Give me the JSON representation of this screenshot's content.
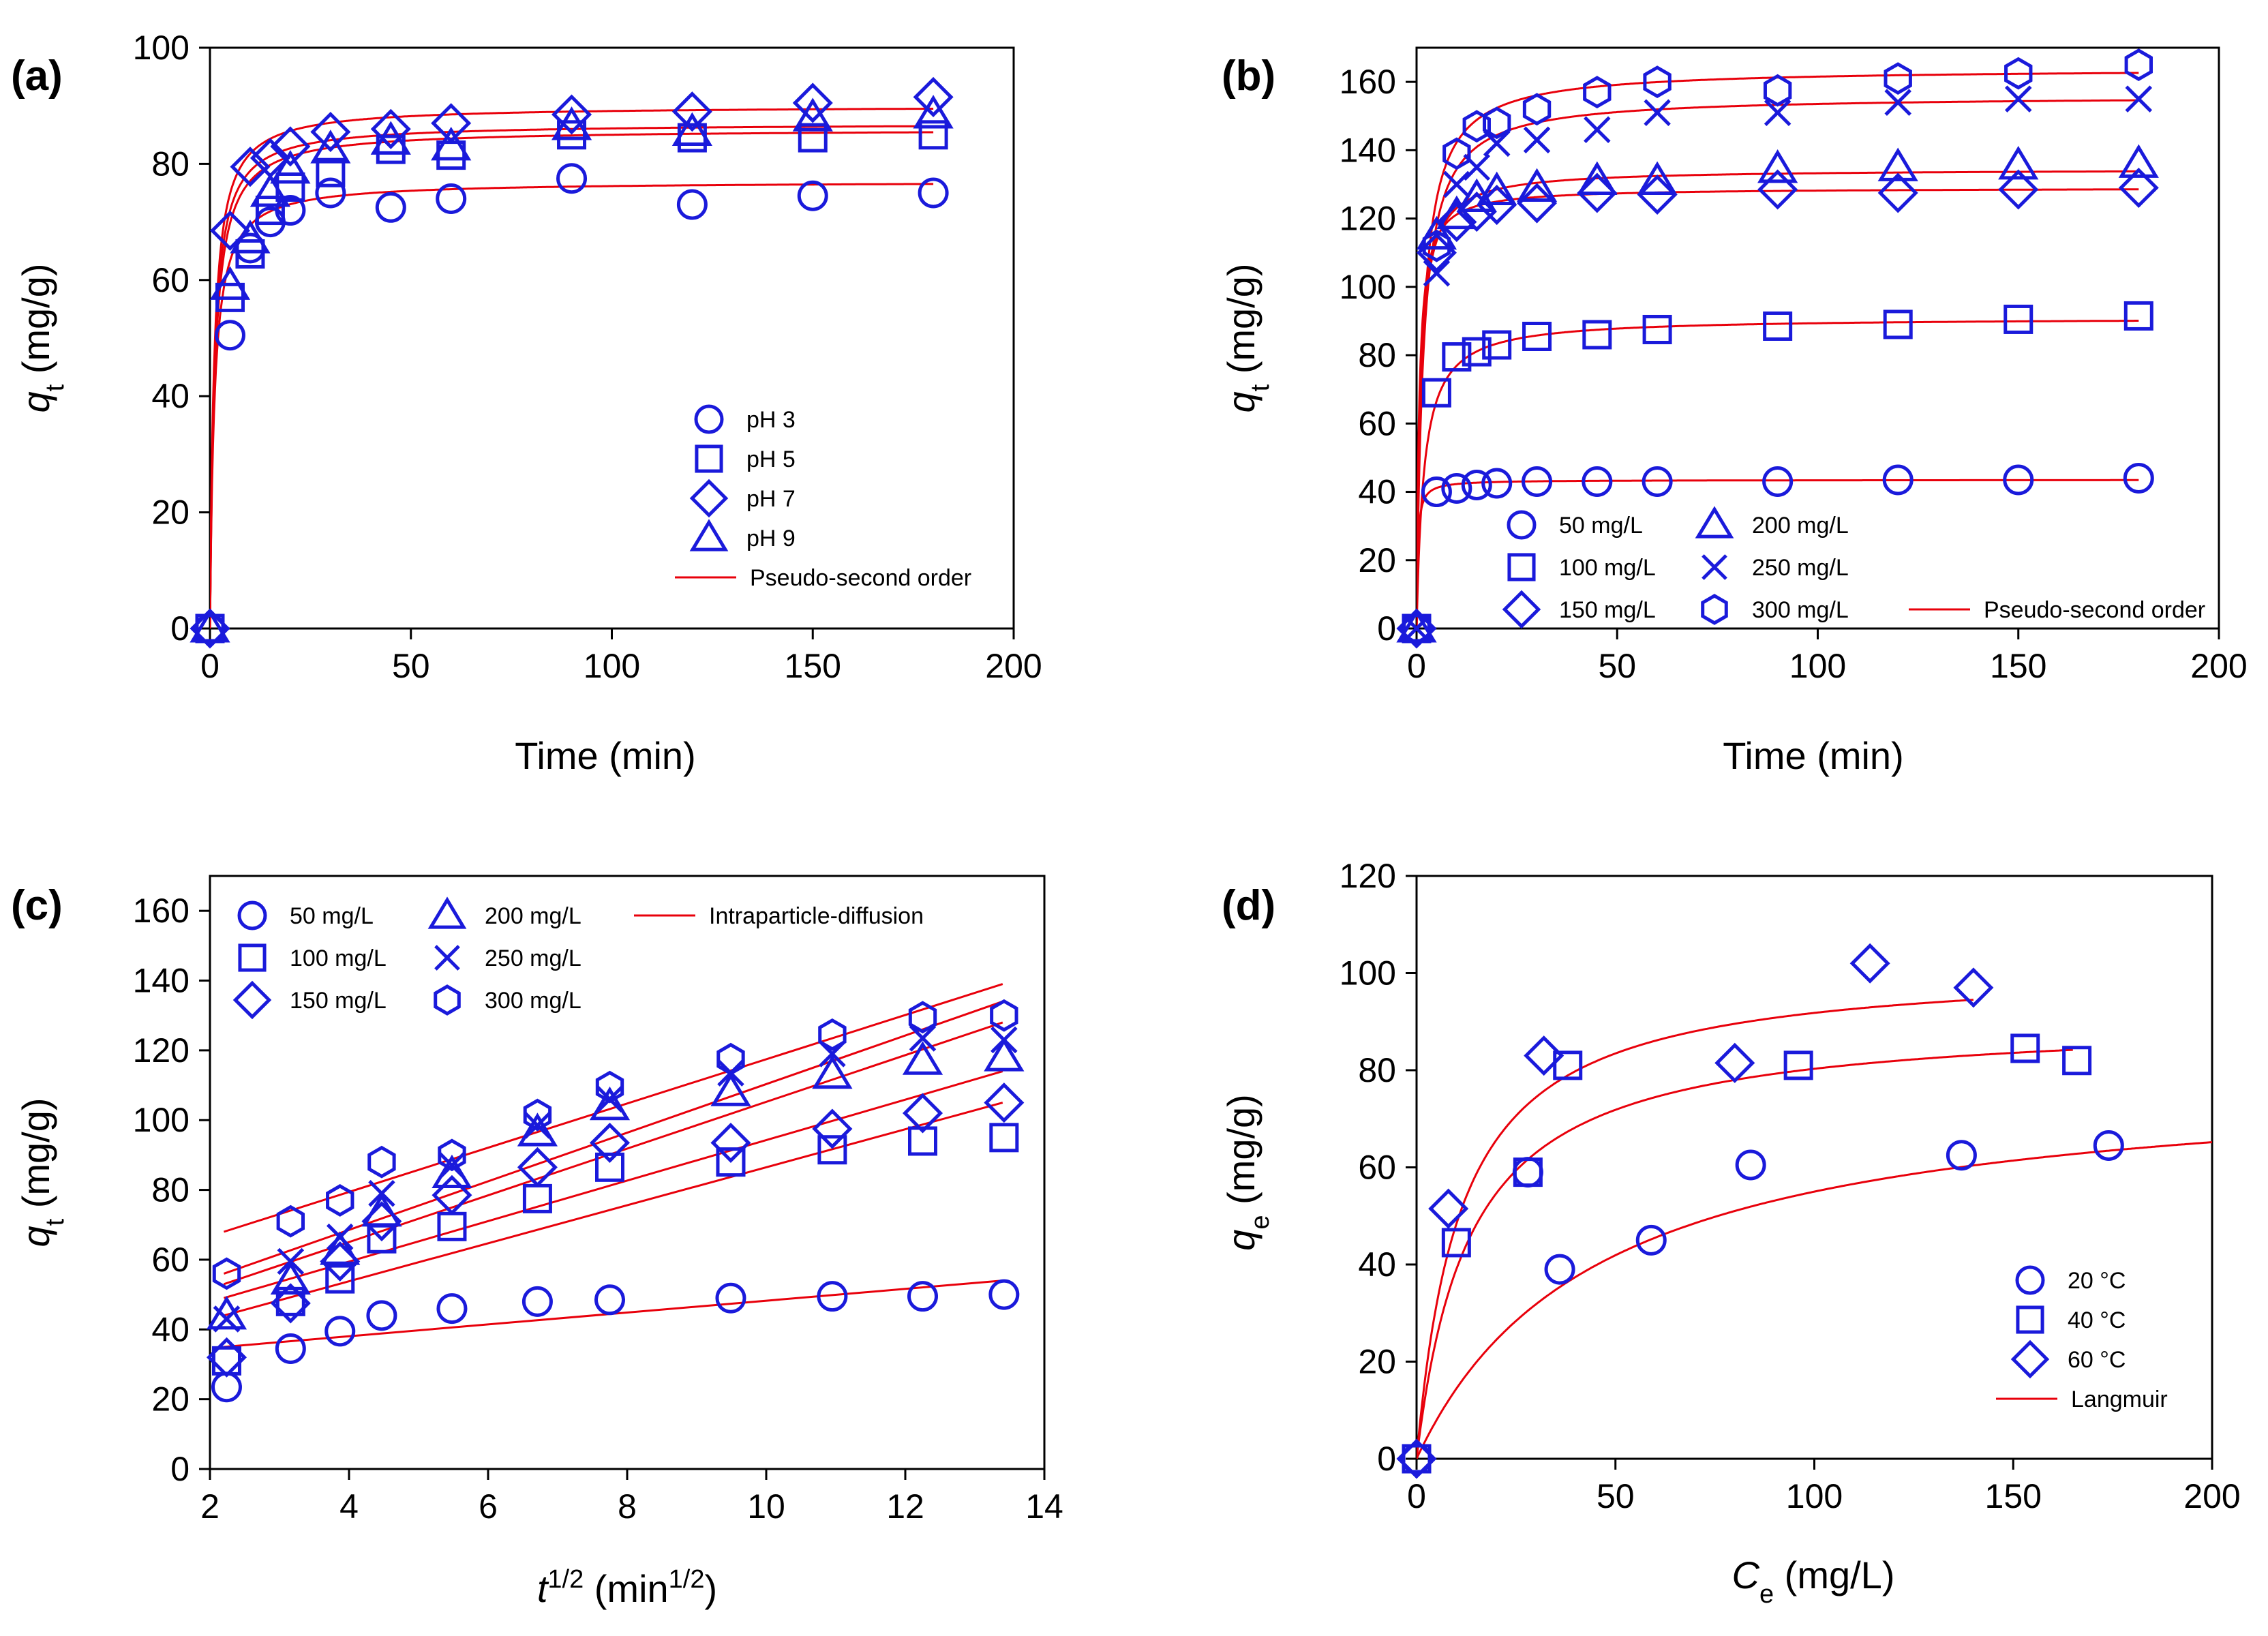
{
  "colors": {
    "marker": "#1a1adb",
    "fit": "#e8000b",
    "axis": "#000000"
  },
  "chart_data": [
    {
      "type": "scatter",
      "label": "(a)",
      "xlabel": "Time (min)",
      "ylabel_main": "q",
      "ylabel_sub": "t",
      "ylabel_unit": " (mg/g)",
      "xlim": [
        0,
        200
      ],
      "ylim": [
        0,
        100
      ],
      "xticks": [
        0,
        50,
        100,
        150,
        200
      ],
      "yticks": [
        0,
        20,
        40,
        60,
        80,
        100
      ],
      "legend_position": "right-middle",
      "fit_label": "Pseudo-second order",
      "series": [
        {
          "name": "pH 3",
          "marker": "circle",
          "x": [
            0,
            5,
            10,
            15,
            20,
            30,
            45,
            60,
            90,
            120,
            150,
            180
          ],
          "y": [
            0,
            50.5,
            65.5,
            70,
            72,
            75,
            72.5,
            74,
            77.5,
            73,
            74.5,
            75
          ],
          "qe": 77,
          "k": 0.012
        },
        {
          "name": "pH 5",
          "marker": "square",
          "x": [
            0,
            5,
            10,
            15,
            20,
            30,
            45,
            60,
            90,
            120,
            150,
            180
          ],
          "y": [
            0,
            57,
            64.5,
            72,
            76,
            78.5,
            82.5,
            81.5,
            85,
            84.5,
            84.5,
            85
          ],
          "qe": 86,
          "k": 0.01
        },
        {
          "name": "pH 7",
          "marker": "diamond",
          "x": [
            0,
            5,
            10,
            15,
            20,
            30,
            45,
            60,
            90,
            120,
            150,
            180
          ],
          "y": [
            0,
            68.5,
            79.5,
            81,
            83,
            85.5,
            86,
            87,
            88.5,
            89,
            90.5,
            91.5
          ],
          "qe": 90,
          "k": 0.011
        },
        {
          "name": "pH 9",
          "marker": "triangle",
          "x": [
            0,
            5,
            10,
            15,
            20,
            30,
            45,
            60,
            90,
            120,
            150,
            180
          ],
          "y": [
            0,
            59,
            67,
            75,
            79,
            82.5,
            84,
            83,
            86.5,
            85.5,
            88,
            88.5
          ],
          "qe": 87,
          "k": 0.011
        }
      ]
    },
    {
      "type": "scatter",
      "label": "(b)",
      "xlabel": "Time (min)",
      "ylabel_main": "q",
      "ylabel_sub": "t",
      "ylabel_unit": " (mg/g)",
      "xlim": [
        0,
        200
      ],
      "ylim": [
        0,
        170
      ],
      "xticks": [
        0,
        50,
        100,
        150,
        200
      ],
      "yticks": [
        0,
        20,
        40,
        60,
        80,
        100,
        120,
        140,
        160
      ],
      "legend_position": "bottom",
      "fit_label": "Pseudo-second order",
      "series": [
        {
          "name": "50 mg/L",
          "marker": "circle",
          "x": [
            0,
            5,
            10,
            15,
            20,
            30,
            45,
            60,
            90,
            120,
            150,
            180
          ],
          "y": [
            0,
            40,
            41,
            42,
            42.5,
            43,
            43,
            43,
            43,
            43.5,
            43.5,
            44
          ],
          "qe": 43.5,
          "k": 0.08
        },
        {
          "name": "100 mg/L",
          "marker": "square",
          "x": [
            0,
            5,
            10,
            15,
            20,
            30,
            45,
            60,
            90,
            120,
            150,
            180
          ],
          "y": [
            0,
            69,
            79.5,
            81,
            83,
            85.5,
            86,
            87.5,
            88.5,
            89,
            90.5,
            91.5
          ],
          "qe": 91,
          "k": 0.006
        },
        {
          "name": "150 mg/L",
          "marker": "diamond",
          "x": [
            0,
            5,
            10,
            15,
            20,
            30,
            45,
            60,
            90,
            120,
            150,
            180
          ],
          "y": [
            0,
            110,
            119,
            122,
            124,
            124.5,
            127.5,
            127,
            128.5,
            127.5,
            128.5,
            129
          ],
          "qe": 129,
          "k": 0.012
        },
        {
          "name": "200 mg/L",
          "marker": "triangle",
          "x": [
            0,
            5,
            10,
            15,
            20,
            30,
            45,
            60,
            90,
            120,
            150,
            180
          ],
          "y": [
            0,
            115,
            121,
            126,
            128,
            129,
            131,
            131,
            134.5,
            135,
            135.5,
            136
          ],
          "qe": 134.5,
          "k": 0.008
        },
        {
          "name": "250 mg/L",
          "marker": "cross",
          "x": [
            0,
            5,
            10,
            15,
            20,
            30,
            45,
            60,
            90,
            120,
            150,
            180
          ],
          "y": [
            0,
            104,
            130,
            135,
            142,
            143,
            146,
            151,
            151,
            154,
            155,
            155
          ],
          "qe": 156,
          "k": 0.004
        },
        {
          "name": "300 mg/L",
          "marker": "hexagon",
          "x": [
            0,
            5,
            10,
            15,
            20,
            30,
            45,
            60,
            90,
            120,
            150,
            180
          ],
          "y": [
            0,
            112,
            139,
            147,
            148,
            152,
            157,
            160,
            157.5,
            161,
            162.5,
            165
          ],
          "qe": 164,
          "k": 0.004
        }
      ]
    },
    {
      "type": "scatter",
      "label": "(c)",
      "xlabel_main": "t",
      "xlabel_sup": "1/2",
      "xlabel_unit_open": " (min",
      "xlabel_unit_sup": "1/2",
      "xlabel_unit_close": ")",
      "ylabel_main": "q",
      "ylabel_sub": "t",
      "ylabel_unit": " (mg/g)",
      "xlim": [
        2,
        14
      ],
      "ylim": [
        0,
        170
      ],
      "xticks": [
        2,
        4,
        6,
        8,
        10,
        12,
        14
      ],
      "yticks": [
        0,
        20,
        40,
        60,
        80,
        100,
        120,
        140,
        160
      ],
      "legend_position": "top",
      "fit_label": "Intraparticle-diffusion",
      "series": [
        {
          "name": "50 mg/L",
          "marker": "circle",
          "x": [
            2.24,
            3.16,
            3.87,
            4.47,
            5.48,
            6.71,
            7.75,
            9.49,
            10.95,
            12.25,
            13.42
          ],
          "y": [
            23.5,
            34.5,
            39.5,
            44,
            46,
            48,
            48.5,
            49,
            49.5,
            49.5,
            50
          ],
          "line": [
            [
              2.2,
              35
            ],
            [
              13.4,
              54
            ]
          ]
        },
        {
          "name": "100 mg/L",
          "marker": "square",
          "x": [
            2.24,
            3.16,
            3.87,
            4.47,
            5.48,
            6.71,
            7.75,
            9.49,
            10.95,
            12.25,
            13.42
          ],
          "y": [
            31,
            48,
            54.5,
            66,
            69.5,
            77.5,
            86.5,
            88,
            91.5,
            94,
            95
          ],
          "line": [
            [
              2.2,
              44
            ],
            [
              13.4,
              105
            ]
          ]
        },
        {
          "name": "150 mg/L",
          "marker": "diamond",
          "x": [
            2.24,
            3.16,
            3.87,
            4.47,
            5.48,
            6.71,
            7.75,
            9.49,
            10.95,
            12.25,
            13.42
          ],
          "y": [
            32,
            47.5,
            59.5,
            71,
            78.5,
            86.5,
            93.5,
            93.5,
            97.5,
            102,
            105
          ],
          "line": [
            [
              2.2,
              49
            ],
            [
              13.4,
              114
            ]
          ]
        },
        {
          "name": "200 mg/L",
          "marker": "triangle",
          "x": [
            2.24,
            3.16,
            3.87,
            4.47,
            5.48,
            6.71,
            7.75,
            9.49,
            10.95,
            12.25,
            13.42
          ],
          "y": [
            44,
            54,
            62.5,
            73.5,
            84.5,
            96.5,
            104,
            108,
            113,
            117,
            118
          ],
          "line": [
            [
              2.2,
              53
            ],
            [
              13.4,
              128
            ]
          ]
        },
        {
          "name": "250 mg/L",
          "marker": "cross",
          "x": [
            2.24,
            3.16,
            3.87,
            4.47,
            5.48,
            6.71,
            7.75,
            9.49,
            10.95,
            12.25,
            13.42
          ],
          "y": [
            43,
            59.5,
            66.5,
            79,
            87,
            98.5,
            106,
            113.5,
            119,
            123.5,
            123
          ],
          "line": [
            [
              2.2,
              56
            ],
            [
              13.4,
              134
            ]
          ]
        },
        {
          "name": "300 mg/L",
          "marker": "hexagon",
          "x": [
            2.24,
            3.16,
            3.87,
            4.47,
            5.48,
            6.71,
            7.75,
            9.49,
            10.95,
            12.25,
            13.42
          ],
          "y": [
            56,
            71,
            77,
            88,
            90,
            101.5,
            109.5,
            117.5,
            124.5,
            129.5,
            130
          ],
          "line": [
            [
              2.2,
              68
            ],
            [
              13.4,
              139
            ]
          ]
        }
      ]
    },
    {
      "type": "scatter",
      "label": "(d)",
      "xlabel_main": "C",
      "xlabel_sub": "e",
      "xlabel_unit": " (mg/L)",
      "ylabel_main": "q",
      "ylabel_sub": "e",
      "ylabel_unit": " (mg/g)",
      "xlim": [
        0,
        200
      ],
      "ylim": [
        0,
        120
      ],
      "xticks": [
        0,
        50,
        100,
        150,
        200
      ],
      "yticks": [
        0,
        20,
        40,
        60,
        80,
        100,
        120
      ],
      "legend_position": "bottom-right",
      "fit_label": "Langmuir",
      "series": [
        {
          "name": "20 °C",
          "marker": "circle",
          "x": [
            0,
            28,
            36,
            59,
            84,
            137,
            174
          ],
          "y": [
            0,
            59,
            39,
            45,
            60.5,
            62.5,
            64.5
          ],
          "qm": 80,
          "kl": 0.022,
          "fit_xmax": 200
        },
        {
          "name": "40 °C",
          "marker": "square",
          "x": [
            0,
            10,
            28,
            38,
            96,
            153,
            166
          ],
          "y": [
            0,
            44.5,
            59,
            81,
            81,
            84.5,
            82
          ],
          "qm": 91,
          "kl": 0.075,
          "fit_xmax": 165
        },
        {
          "name": "60 °C",
          "marker": "diamond",
          "x": [
            0,
            8,
            32,
            80,
            114,
            140
          ],
          "y": [
            0,
            51.5,
            83,
            81.5,
            102,
            97
          ],
          "qm": 102,
          "kl": 0.09,
          "fit_xmax": 140
        }
      ]
    }
  ]
}
